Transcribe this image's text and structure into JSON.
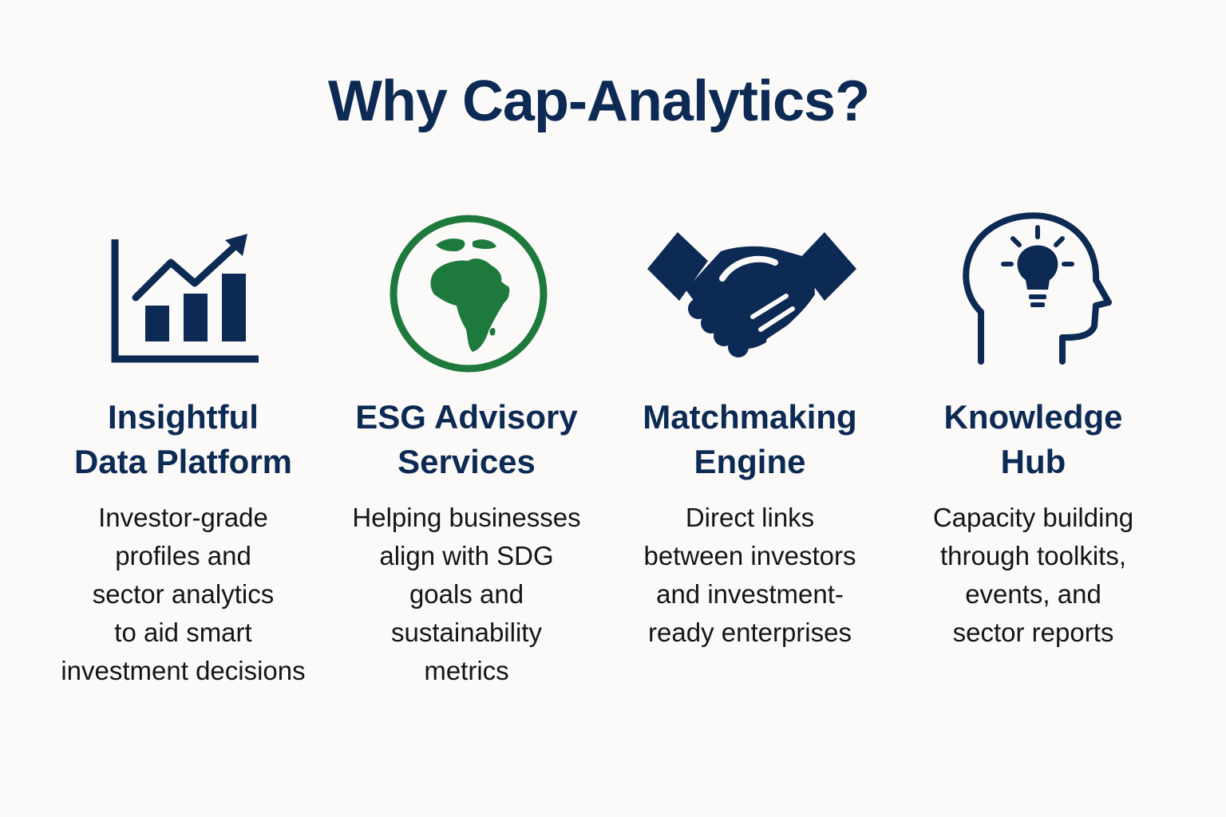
{
  "title": "Why Cap-Analytics?",
  "colors": {
    "navy": "#0c2a54",
    "green": "#1e7a3c",
    "background": "#fbfaf8",
    "body_text": "#151515"
  },
  "features": [
    {
      "icon": "bar-chart-growth-icon",
      "title": "Insightful\nData Platform",
      "description": "Investor-grade\nprofiles and\nsector analytics\nto aid smart\ninvestment decisions"
    },
    {
      "icon": "globe-africa-icon",
      "title": "ESG Advisory\nServices",
      "description": "Helping businesses\nalign with SDG\ngoals and\nsustainability\nmetrics"
    },
    {
      "icon": "handshake-icon",
      "title": "Matchmaking\nEngine",
      "description": "Direct links\nbetween investors\nand investment-\nready enterprises"
    },
    {
      "icon": "head-lightbulb-icon",
      "title": "Knowledge\nHub",
      "description": "Capacity building\nthrough toolkits,\nevents, and\nsector reports"
    }
  ]
}
